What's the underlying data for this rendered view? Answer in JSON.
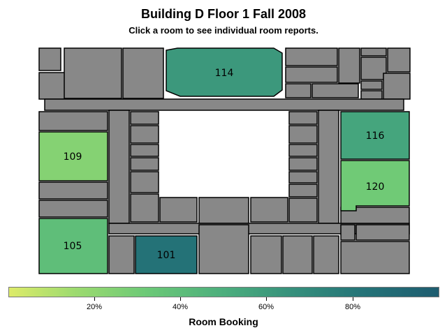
{
  "header": {
    "title": "Building D Floor 1 Fall 2008",
    "subtitle": "Click a room to see individual room reports."
  },
  "colors": {
    "unbooked_room": "#888888",
    "outline": "#000000",
    "scale": [
      "#ddeb6a",
      "#9edb6f",
      "#6cc977",
      "#4cae7d",
      "#36907c",
      "#257478",
      "#1e5c6f"
    ]
  },
  "rooms": [
    {
      "label": "114",
      "booking_pct": 62
    },
    {
      "label": "109",
      "booking_pct": 25
    },
    {
      "label": "116",
      "booking_pct": 55
    },
    {
      "label": "120",
      "booking_pct": 32
    },
    {
      "label": "105",
      "booking_pct": 40
    },
    {
      "label": "101",
      "booking_pct": 85
    }
  ],
  "legend": {
    "title": "Room Booking",
    "ticks": [
      "20%",
      "40%",
      "60%",
      "80%"
    ]
  }
}
